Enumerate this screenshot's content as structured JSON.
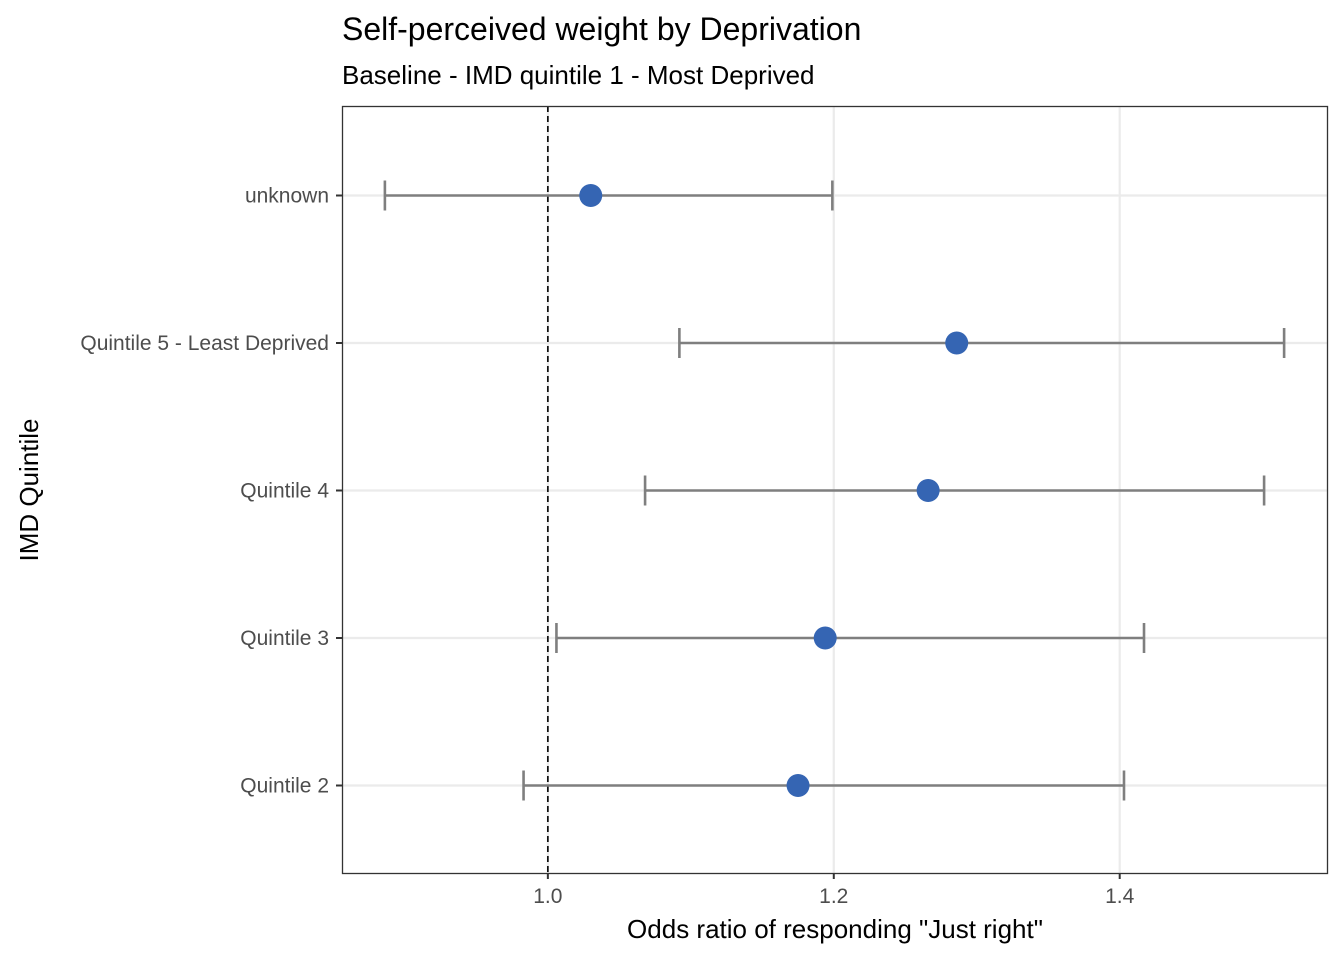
{
  "chart_data": {
    "type": "scatter",
    "subtype": "forest-plot",
    "title": "Self-perceived weight by Deprivation",
    "subtitle": "Baseline - IMD quintile 1 - Most Deprived",
    "xlabel": "Odds ratio of responding \"Just right\"",
    "ylabel": "IMD Quintile",
    "xlim": [
      0.856,
      1.545
    ],
    "x_ticks": [
      1.0,
      1.2,
      1.4
    ],
    "x_tick_labels": [
      "1.0",
      "1.2",
      "1.4"
    ],
    "reference_line": 1.0,
    "grid": true,
    "legend": "none",
    "categories": [
      "Quintile 2",
      "Quintile 3",
      "Quintile 4",
      "Quintile 5 - Least Deprived",
      "unknown"
    ],
    "series": [
      {
        "values": [
          1.175,
          1.194,
          1.266,
          1.286,
          1.03
        ],
        "lower": [
          0.983,
          1.006,
          1.068,
          1.092,
          0.886
        ],
        "upper": [
          1.403,
          1.417,
          1.501,
          1.515,
          1.199
        ]
      }
    ],
    "colors": {
      "point": "#3565b3",
      "error_bar": "#7f7f7f",
      "reference_line": "#000000"
    }
  }
}
